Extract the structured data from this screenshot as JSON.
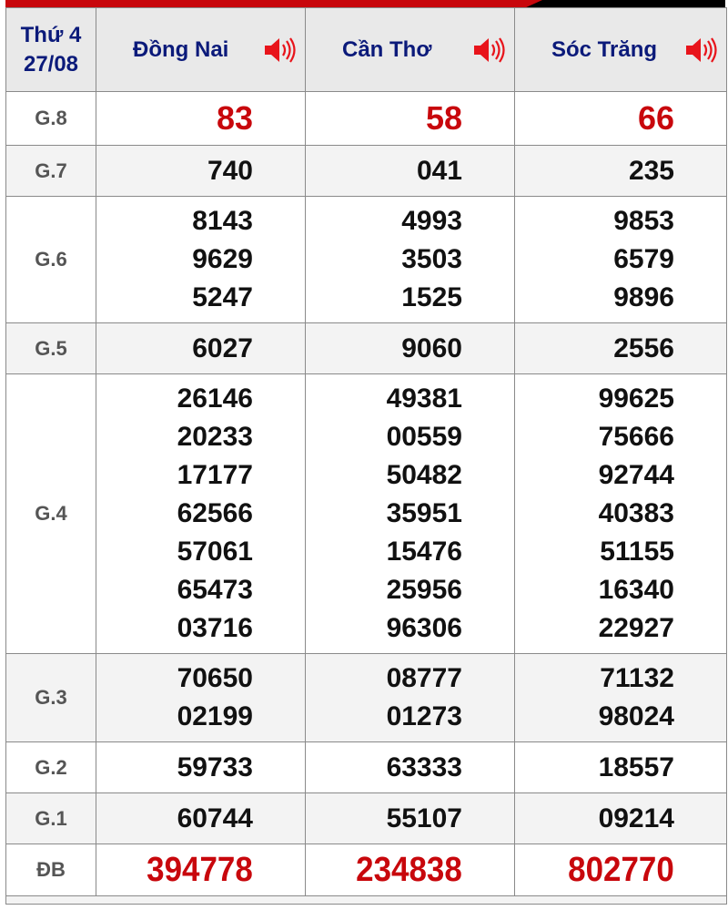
{
  "header": {
    "day": "Thứ 4",
    "date": "27/08",
    "provinces": [
      "Đồng Nai",
      "Cần Thơ",
      "Sóc Trăng"
    ],
    "speaker_icon": "speaker-volume-icon"
  },
  "colors": {
    "accent_red": "#c8070c",
    "header_blue": "#0b1a7a"
  },
  "rows": [
    {
      "label": "G.8",
      "values": [
        [
          "83"
        ],
        [
          "58"
        ],
        [
          "66"
        ]
      ]
    },
    {
      "label": "G.7",
      "values": [
        [
          "740"
        ],
        [
          "041"
        ],
        [
          "235"
        ]
      ]
    },
    {
      "label": "G.6",
      "values": [
        [
          "8143",
          "9629",
          "5247"
        ],
        [
          "4993",
          "3503",
          "1525"
        ],
        [
          "9853",
          "6579",
          "9896"
        ]
      ]
    },
    {
      "label": "G.5",
      "values": [
        [
          "6027"
        ],
        [
          "9060"
        ],
        [
          "2556"
        ]
      ]
    },
    {
      "label": "G.4",
      "values": [
        [
          "26146",
          "20233",
          "17177",
          "62566",
          "57061",
          "65473",
          "03716"
        ],
        [
          "49381",
          "00559",
          "50482",
          "35951",
          "15476",
          "25956",
          "96306"
        ],
        [
          "99625",
          "75666",
          "92744",
          "40383",
          "51155",
          "16340",
          "22927"
        ]
      ]
    },
    {
      "label": "G.3",
      "values": [
        [
          "70650",
          "02199"
        ],
        [
          "08777",
          "01273"
        ],
        [
          "71132",
          "98024"
        ]
      ]
    },
    {
      "label": "G.2",
      "values": [
        [
          "59733"
        ],
        [
          "63333"
        ],
        [
          "18557"
        ]
      ]
    },
    {
      "label": "G.1",
      "values": [
        [
          "60744"
        ],
        [
          "55107"
        ],
        [
          "09214"
        ]
      ]
    },
    {
      "label": "ĐB",
      "values": [
        [
          "394778"
        ],
        [
          "234838"
        ],
        [
          "802770"
        ]
      ]
    }
  ]
}
